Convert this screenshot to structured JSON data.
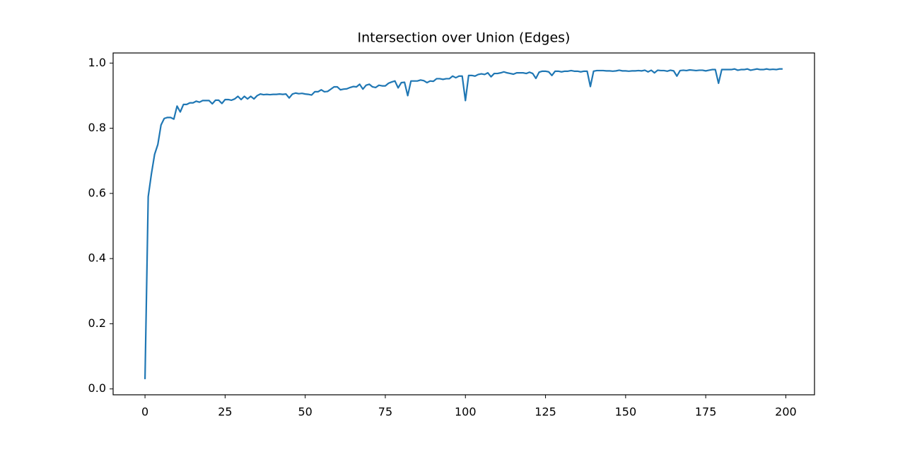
{
  "chart_data": {
    "type": "line",
    "title": "Intersection over Union (Edges)",
    "x": [
      0,
      1,
      2,
      3,
      4,
      5,
      6,
      7,
      8,
      9,
      10,
      11,
      12,
      13,
      14,
      15,
      16,
      17,
      18,
      19,
      20,
      21,
      22,
      23,
      24,
      25,
      26,
      27,
      28,
      29,
      30,
      31,
      32,
      33,
      34,
      35,
      36,
      37,
      38,
      39,
      40,
      41,
      42,
      43,
      44,
      45,
      46,
      47,
      48,
      49,
      50,
      51,
      52,
      53,
      54,
      55,
      56,
      57,
      58,
      59,
      60,
      61,
      62,
      63,
      64,
      65,
      66,
      67,
      68,
      69,
      70,
      71,
      72,
      73,
      74,
      75,
      76,
      77,
      78,
      79,
      80,
      81,
      82,
      83,
      84,
      85,
      86,
      87,
      88,
      89,
      90,
      91,
      92,
      93,
      94,
      95,
      96,
      97,
      98,
      99,
      100,
      101,
      102,
      103,
      104,
      105,
      106,
      107,
      108,
      109,
      110,
      111,
      112,
      113,
      114,
      115,
      116,
      117,
      118,
      119,
      120,
      121,
      122,
      123,
      124,
      125,
      126,
      127,
      128,
      129,
      130,
      131,
      132,
      133,
      134,
      135,
      136,
      137,
      138,
      139,
      140,
      141,
      142,
      143,
      144,
      145,
      146,
      147,
      148,
      149,
      150,
      151,
      152,
      153,
      154,
      155,
      156,
      157,
      158,
      159,
      160,
      161,
      162,
      163,
      164,
      165,
      166,
      167,
      168,
      169,
      170,
      171,
      172,
      173,
      174,
      175,
      176,
      177,
      178,
      179,
      180,
      181,
      182,
      183,
      184,
      185,
      186,
      187,
      188,
      189,
      190,
      191,
      192,
      193,
      194,
      195,
      196,
      197,
      198,
      199
    ],
    "values": [
      0.03,
      0.59,
      0.66,
      0.72,
      0.75,
      0.81,
      0.83,
      0.833,
      0.833,
      0.828,
      0.868,
      0.85,
      0.873,
      0.873,
      0.878,
      0.878,
      0.883,
      0.88,
      0.885,
      0.885,
      0.885,
      0.875,
      0.886,
      0.886,
      0.876,
      0.888,
      0.888,
      0.886,
      0.89,
      0.898,
      0.888,
      0.898,
      0.89,
      0.898,
      0.89,
      0.9,
      0.905,
      0.903,
      0.904,
      0.903,
      0.904,
      0.904,
      0.905,
      0.904,
      0.905,
      0.893,
      0.905,
      0.908,
      0.906,
      0.907,
      0.905,
      0.904,
      0.902,
      0.912,
      0.912,
      0.918,
      0.912,
      0.913,
      0.92,
      0.927,
      0.927,
      0.918,
      0.92,
      0.921,
      0.925,
      0.928,
      0.927,
      0.935,
      0.92,
      0.932,
      0.935,
      0.927,
      0.925,
      0.932,
      0.93,
      0.93,
      0.938,
      0.942,
      0.945,
      0.924,
      0.94,
      0.941,
      0.9,
      0.945,
      0.945,
      0.945,
      0.948,
      0.946,
      0.94,
      0.945,
      0.944,
      0.952,
      0.952,
      0.95,
      0.952,
      0.952,
      0.96,
      0.955,
      0.96,
      0.96,
      0.885,
      0.962,
      0.962,
      0.96,
      0.965,
      0.967,
      0.965,
      0.97,
      0.958,
      0.968,
      0.968,
      0.97,
      0.973,
      0.97,
      0.968,
      0.966,
      0.97,
      0.97,
      0.97,
      0.968,
      0.972,
      0.968,
      0.953,
      0.972,
      0.975,
      0.975,
      0.973,
      0.962,
      0.975,
      0.975,
      0.973,
      0.975,
      0.975,
      0.977,
      0.975,
      0.975,
      0.973,
      0.975,
      0.975,
      0.928,
      0.975,
      0.977,
      0.977,
      0.977,
      0.976,
      0.976,
      0.975,
      0.976,
      0.978,
      0.976,
      0.976,
      0.975,
      0.976,
      0.976,
      0.977,
      0.976,
      0.978,
      0.973,
      0.978,
      0.97,
      0.978,
      0.977,
      0.977,
      0.975,
      0.978,
      0.976,
      0.96,
      0.977,
      0.978,
      0.977,
      0.979,
      0.978,
      0.977,
      0.978,
      0.978,
      0.976,
      0.978,
      0.98,
      0.98,
      0.938,
      0.98,
      0.98,
      0.98,
      0.98,
      0.982,
      0.978,
      0.98,
      0.98,
      0.982,
      0.978,
      0.98,
      0.982,
      0.98,
      0.98,
      0.982,
      0.98,
      0.981,
      0.98,
      0.982,
      0.982
    ],
    "color": "#1f77b4",
    "xlim": [
      -9.95,
      208.95
    ],
    "xticks": [
      0,
      25,
      50,
      75,
      100,
      125,
      150,
      175,
      200
    ],
    "ylim": [
      -0.018,
      1.031
    ],
    "yticks": [
      {
        "value": 0,
        "label": "0.0"
      },
      0.2,
      0.4,
      0.6,
      0.8,
      {
        "value": 1,
        "label": "1.0"
      }
    ]
  }
}
